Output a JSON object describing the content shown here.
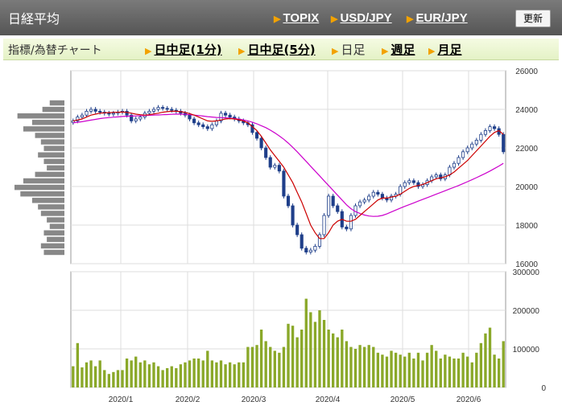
{
  "header": {
    "title": "日経平均",
    "links": [
      "TOPIX",
      "USD/JPY",
      "EUR/JPY"
    ],
    "refresh_label": "更新"
  },
  "tabbar": {
    "label": "指標/為替チャート",
    "tabs": [
      "日中足(1分)",
      "日中足(5分)",
      "日足",
      "週足",
      "月足"
    ],
    "active_tab": "日足"
  },
  "colors": {
    "candle_up": "#ffffff",
    "candle_down": "#1f3f8a",
    "ma_short": "#cc0000",
    "ma_long": "#cc00cc",
    "volume": "#8aa829",
    "volume_profile": "#888888"
  },
  "chart_data": [
    {
      "type": "candlestick",
      "title": "",
      "x_tick_labels": [
        "2020/1",
        "2020/2",
        "2020/3",
        "2020/4",
        "2020/5",
        "2020/6"
      ],
      "y_tick_labels": [
        "16000",
        "18000",
        "20000",
        "22000",
        "24000",
        "26000"
      ],
      "ylim": [
        16000,
        26000
      ],
      "grid": true,
      "close": [
        23400,
        23600,
        23700,
        23900,
        24000,
        23900,
        23850,
        23800,
        23750,
        23800,
        23850,
        23900,
        23700,
        23400,
        23500,
        23600,
        23800,
        23900,
        24000,
        24100,
        24050,
        24000,
        23950,
        23900,
        23800,
        23700,
        23500,
        23300,
        23200,
        23100,
        23000,
        23200,
        23400,
        23800,
        23700,
        23600,
        23500,
        23400,
        23300,
        23200,
        22800,
        22500,
        22000,
        21500,
        21000,
        21100,
        20800,
        19500,
        19000,
        18000,
        17500,
        16800,
        16600,
        16700,
        16900,
        17500,
        18500,
        19500,
        19000,
        18700,
        17900,
        17800,
        18500,
        19000,
        19200,
        19300,
        19500,
        19700,
        19600,
        19400,
        19300,
        19500,
        19600,
        20000,
        20200,
        20300,
        20200,
        20000,
        20100,
        20300,
        20500,
        20600,
        20400,
        20600,
        21000,
        21200,
        21500,
        21800,
        22000,
        22200,
        22400,
        22700,
        22900,
        23100,
        23000,
        22700,
        21800
      ],
      "ma_short": [
        23400,
        23450,
        23500,
        23600,
        23700,
        23750,
        23800,
        23820,
        23830,
        23840,
        23850,
        23860,
        23840,
        23800,
        23750,
        23720,
        23700,
        23720,
        23760,
        23800,
        23850,
        23880,
        23900,
        23900,
        23880,
        23840,
        23780,
        23700,
        23600,
        23500,
        23400,
        23380,
        23400,
        23450,
        23500,
        23520,
        23500,
        23460,
        23400,
        23300,
        23100,
        22900,
        22600,
        22250,
        21900,
        21600,
        21300,
        21000,
        20600,
        20200,
        19700,
        19200,
        18600,
        18000,
        17600,
        17300,
        17300,
        17600,
        18000,
        18200,
        18300,
        18200,
        18200,
        18300,
        18500,
        18700,
        18900,
        19100,
        19300,
        19400,
        19400,
        19450,
        19500,
        19600,
        19750,
        19900,
        20000,
        20050,
        20100,
        20200,
        20300,
        20400,
        20450,
        20500,
        20600,
        20750,
        20950,
        21150,
        21350,
        21600,
        21850,
        22100,
        22350,
        22600,
        22800,
        22900,
        22700
      ],
      "ma_long": [
        23300,
        23330,
        23360,
        23400,
        23440,
        23480,
        23520,
        23550,
        23570,
        23590,
        23610,
        23630,
        23640,
        23650,
        23660,
        23670,
        23680,
        23690,
        23700,
        23710,
        23720,
        23730,
        23740,
        23750,
        23750,
        23740,
        23720,
        23700,
        23680,
        23650,
        23620,
        23600,
        23580,
        23570,
        23560,
        23540,
        23520,
        23490,
        23450,
        23400,
        23330,
        23250,
        23150,
        23050,
        22920,
        22780,
        22620,
        22450,
        22250,
        22030,
        21800,
        21550,
        21300,
        21050,
        20800,
        20550,
        20300,
        20050,
        19800,
        19550,
        19300,
        19050,
        18850,
        18700,
        18600,
        18520,
        18470,
        18450,
        18460,
        18500,
        18580,
        18680,
        18780,
        18880,
        18970,
        19060,
        19150,
        19240,
        19330,
        19420,
        19510,
        19600,
        19690,
        19780,
        19870,
        19960,
        20050,
        20150,
        20250,
        20350,
        20460,
        20570,
        20680,
        20800,
        20930,
        21060,
        21200
      ]
    },
    {
      "type": "bar",
      "title": "",
      "x_tick_labels": [
        "2020/1",
        "2020/2",
        "2020/3",
        "2020/4",
        "2020/5",
        "2020/6"
      ],
      "y_tick_labels": [
        "0",
        "100000",
        "200000",
        "300000"
      ],
      "ylim": [
        0,
        300000
      ],
      "grid": true,
      "values": [
        55000,
        115000,
        52000,
        65000,
        70000,
        55000,
        70000,
        45000,
        35000,
        40000,
        45000,
        45000,
        75000,
        70000,
        80000,
        65000,
        70000,
        60000,
        65000,
        55000,
        45000,
        50000,
        55000,
        50000,
        60000,
        65000,
        70000,
        75000,
        75000,
        70000,
        95000,
        70000,
        65000,
        70000,
        60000,
        65000,
        60000,
        65000,
        65000,
        105000,
        105000,
        110000,
        150000,
        120000,
        105000,
        95000,
        90000,
        105000,
        165000,
        160000,
        130000,
        150000,
        230000,
        195000,
        170000,
        200000,
        175000,
        150000,
        140000,
        130000,
        150000,
        120000,
        105000,
        100000,
        110000,
        105000,
        110000,
        105000,
        90000,
        85000,
        80000,
        95000,
        90000,
        85000,
        80000,
        90000,
        75000,
        90000,
        70000,
        90000,
        110000,
        95000,
        75000,
        85000,
        80000,
        75000,
        75000,
        90000,
        80000,
        65000,
        90000,
        115000,
        140000,
        155000,
        85000,
        75000,
        120000
      ]
    },
    {
      "type": "bar",
      "orientation": "horizontal",
      "title": "",
      "values": [
        10,
        15,
        32,
        22,
        28,
        20,
        16,
        14,
        18,
        14,
        12,
        20,
        28,
        34,
        30,
        22,
        18,
        16,
        12,
        10,
        14,
        12,
        16,
        14
      ]
    }
  ]
}
